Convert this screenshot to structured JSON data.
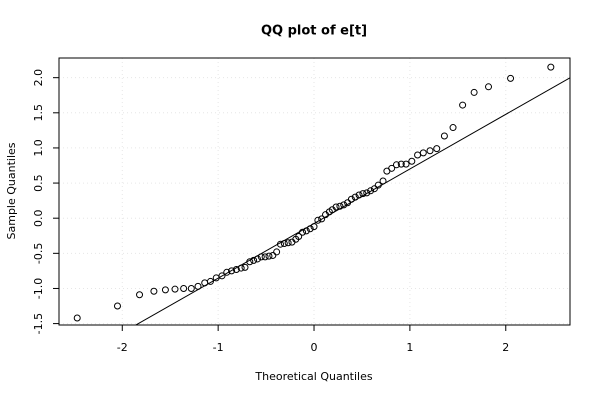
{
  "chart_data": {
    "type": "scatter",
    "title": "QQ plot of e[t]",
    "x_label": "Theoretical Quantiles",
    "y_label": "Sample Quantiles",
    "xlim": [
      -2.66,
      2.67
    ],
    "ylim": [
      -1.52,
      2.28
    ],
    "xticks": [
      -2,
      -1,
      0,
      1,
      2
    ],
    "yticks": [
      {
        "value": -1.5,
        "label": "-1.5"
      },
      {
        "value": -1,
        "label": "-1.0"
      },
      -0.5,
      {
        "value": 0,
        "label": "0.0"
      },
      0.5,
      {
        "value": 1,
        "label": "1.0"
      },
      1.5,
      {
        "value": 2,
        "label": "2.0"
      }
    ],
    "grid": true,
    "color": "#000000",
    "qq_line": {
      "intercept": -0.076,
      "slope": 0.777
    },
    "x": [
      -2.47,
      -2.05,
      -1.82,
      -1.67,
      -1.55,
      -1.45,
      -1.36,
      -1.28,
      -1.21,
      -1.14,
      -1.08,
      -1.02,
      -0.96,
      -0.91,
      -0.86,
      -0.81,
      -0.76,
      -0.72,
      -0.67,
      -0.63,
      -0.59,
      -0.55,
      -0.51,
      -0.47,
      -0.43,
      -0.39,
      -0.35,
      -0.31,
      -0.27,
      -0.23,
      -0.19,
      -0.16,
      -0.12,
      -0.08,
      -0.04,
      0.0,
      0.04,
      0.08,
      0.12,
      0.16,
      0.19,
      0.23,
      0.27,
      0.31,
      0.35,
      0.39,
      0.43,
      0.47,
      0.51,
      0.55,
      0.59,
      0.63,
      0.67,
      0.72,
      0.76,
      0.81,
      0.86,
      0.91,
      0.96,
      1.02,
      1.08,
      1.14,
      1.21,
      1.28,
      1.36,
      1.45,
      1.55,
      1.67,
      1.82,
      2.05,
      2.47
    ],
    "values": [
      -1.42,
      -1.25,
      -1.09,
      -1.04,
      -1.02,
      -1.01,
      -1.0,
      -1.0,
      -0.97,
      -0.92,
      -0.9,
      -0.85,
      -0.82,
      -0.77,
      -0.75,
      -0.73,
      -0.71,
      -0.7,
      -0.62,
      -0.6,
      -0.58,
      -0.55,
      -0.55,
      -0.54,
      -0.53,
      -0.48,
      -0.37,
      -0.36,
      -0.35,
      -0.34,
      -0.3,
      -0.26,
      -0.2,
      -0.18,
      -0.15,
      -0.12,
      -0.03,
      -0.01,
      0.05,
      0.09,
      0.12,
      0.16,
      0.17,
      0.19,
      0.22,
      0.27,
      0.3,
      0.33,
      0.35,
      0.36,
      0.39,
      0.42,
      0.47,
      0.53,
      0.67,
      0.71,
      0.76,
      0.77,
      0.77,
      0.81,
      0.9,
      0.93,
      0.96,
      0.99,
      1.17,
      1.29,
      1.61,
      1.79,
      1.87,
      1.99,
      2.15
    ]
  }
}
